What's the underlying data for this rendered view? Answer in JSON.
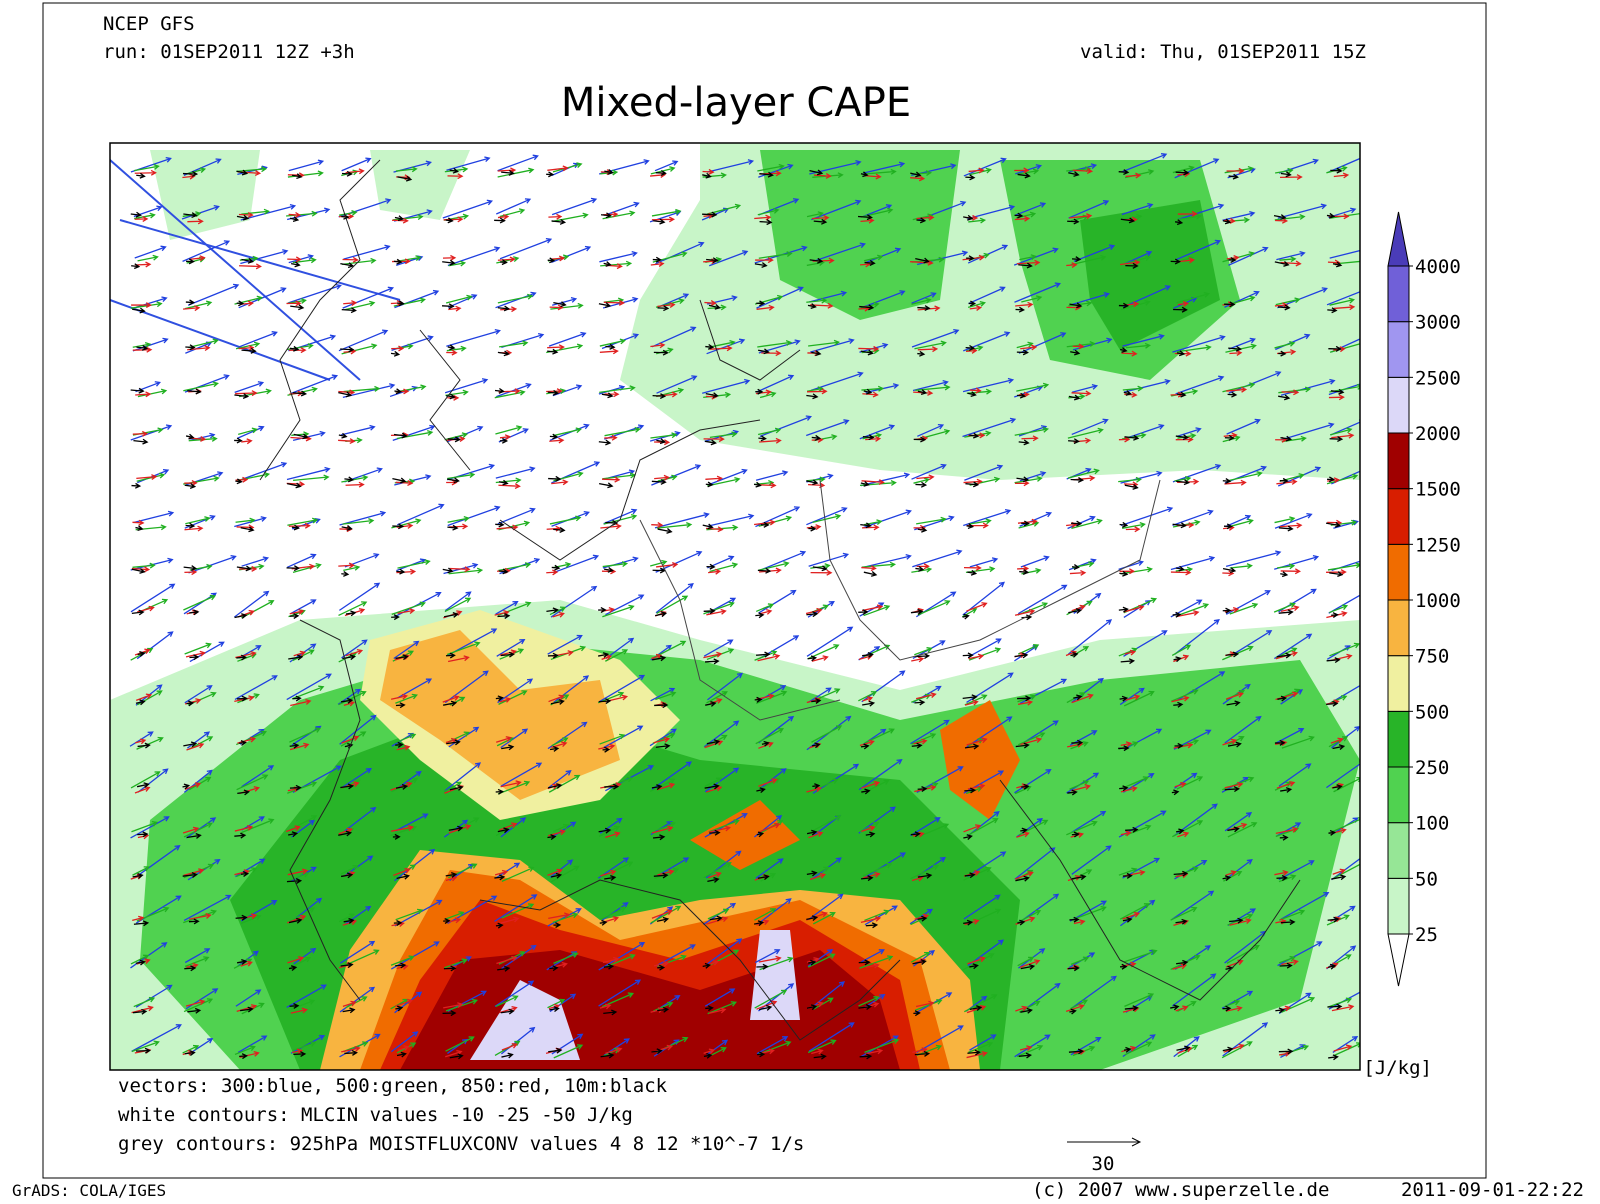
{
  "header": {
    "model": "NCEP GFS",
    "run": "run: 01SEP2011 12Z +3h",
    "valid": "valid: Thu, 01SEP2011 15Z",
    "title": "Mixed-layer CAPE"
  },
  "colorbar": {
    "levels": [
      25,
      50,
      100,
      250,
      500,
      750,
      1000,
      1250,
      1500,
      2000,
      2500,
      3000,
      4000
    ],
    "colors": [
      "#ffffff",
      "#c8f5c8",
      "#96e696",
      "#50d250",
      "#28b428",
      "#f0f0a0",
      "#f8b440",
      "#f06c00",
      "#d81e00",
      "#a00000",
      "#dcd8f8",
      "#a096f0",
      "#7060d8",
      "#4a3cb8"
    ],
    "unit": "[J/kg]"
  },
  "notes": [
    "vectors: 300:blue, 500:green, 850:red, 10m:black",
    "white contours: MLCIN values -10 -25 -50 J/kg",
    "grey contours: 925hPa MOISTFLUXCONV values 4 8 12 *10^-7 1/s"
  ],
  "scale_arrow": "30",
  "footer": {
    "left": "GrADS: COLA/IGES",
    "center": "(c) 2007 www.superzelle.de",
    "right": "2011-09-01-22:22"
  }
}
